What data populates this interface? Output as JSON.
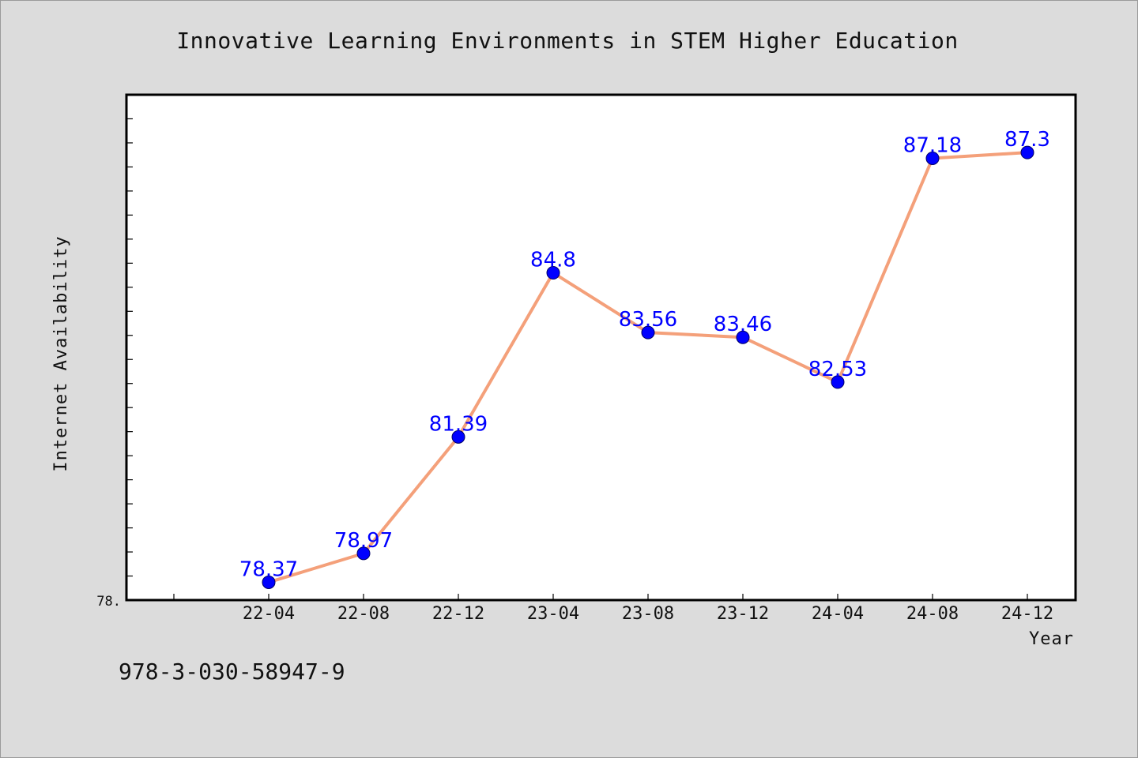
{
  "chart_data": {
    "type": "line",
    "title": "Innovative Learning Environments in STEM Higher Education",
    "xlabel": "Year",
    "ylabel": "Internet Availability",
    "categories": [
      "22-04",
      "22-08",
      "22-12",
      "23-04",
      "23-08",
      "23-12",
      "24-04",
      "24-08",
      "24-12"
    ],
    "values": [
      78.37,
      78.97,
      81.39,
      84.8,
      83.56,
      83.46,
      82.53,
      87.18,
      87.3
    ],
    "data_labels": [
      "78.37",
      "78.97",
      "81.39",
      "84.8",
      "83.56",
      "83.46",
      "82.53",
      "87.18",
      "87.3"
    ],
    "ytick_label": "78.",
    "ylim": [
      78,
      88.5
    ],
    "grid": false,
    "legend": "none",
    "colors": {
      "line": "#f4a07a",
      "marker": "#0000ff",
      "marker_edge": "#000066",
      "label": "#0000ff",
      "background": "#dcdcdc",
      "plot_background": "#ffffff"
    }
  },
  "footnote": "978-3-030-58947-9"
}
